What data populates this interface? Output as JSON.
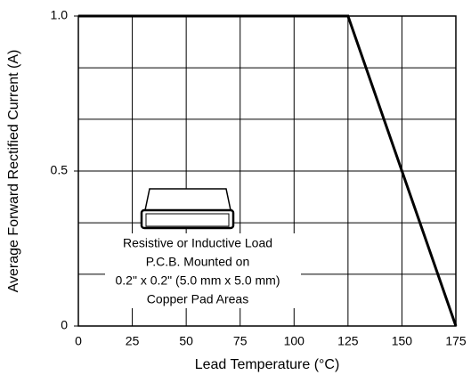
{
  "chart_data": {
    "type": "line",
    "x_label": "Lead Temperature (°C)",
    "y_label": "Average Forward Rectified Current (A)",
    "x": [
      0,
      125,
      175
    ],
    "series": [
      {
        "color": "#000000",
        "values": [
          1,
          1,
          0
        ]
      }
    ],
    "xlim": [
      0,
      175
    ],
    "xticks": [
      0,
      25,
      50,
      75,
      100,
      125,
      150,
      175
    ],
    "ylim": [
      0,
      1
    ],
    "yticks": [
      0,
      0.5,
      {
        "value": 1,
        "label": "1.0"
      }
    ],
    "ygrid": [
      0.167,
      0.333,
      0.5,
      0.667,
      0.833
    ],
    "grid": true,
    "annotation": [
      "Resistive or Inductive Load",
      "P.C.B. Mounted on",
      "0.2\" x 0.2\" (5.0 mm x 5.0 mm)",
      "Copper Pad Areas"
    ]
  }
}
